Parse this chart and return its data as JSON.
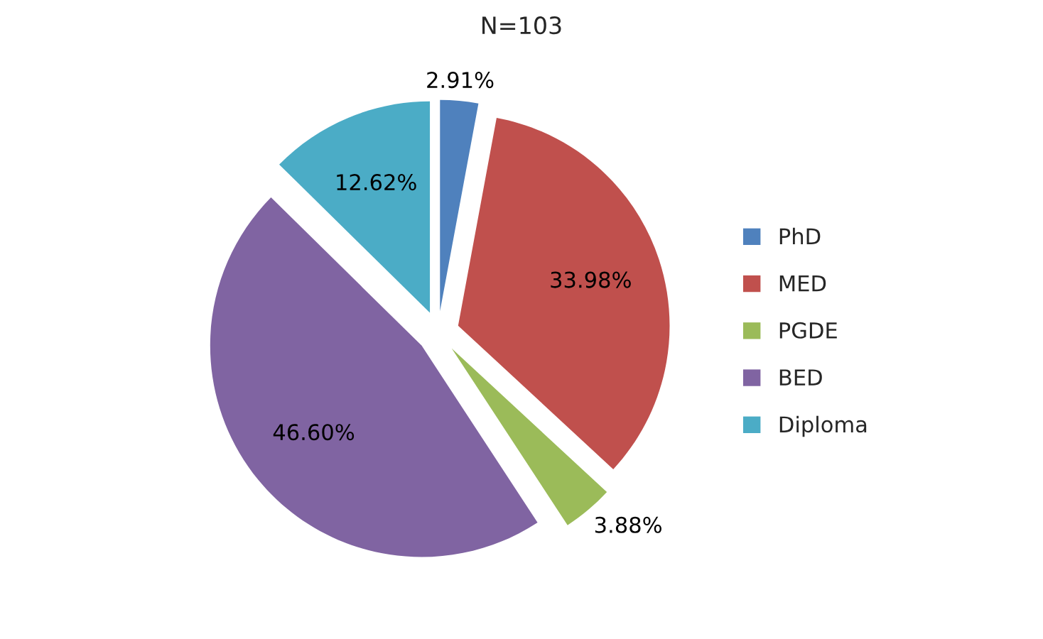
{
  "chart_data": {
    "type": "pie",
    "title": "N=103",
    "categories": [
      "PhD",
      "MED",
      "PGDE",
      "BED",
      "Diploma"
    ],
    "values": [
      2.91,
      33.98,
      3.88,
      46.6,
      12.62
    ],
    "value_labels": [
      "2.91%",
      "33.98%",
      "3.88%",
      "46.60%",
      "12.62%"
    ],
    "colors": [
      "#4f81bd",
      "#c0504d",
      "#9bbb59",
      "#8064a2",
      "#4bacc6"
    ],
    "legend": "right"
  }
}
